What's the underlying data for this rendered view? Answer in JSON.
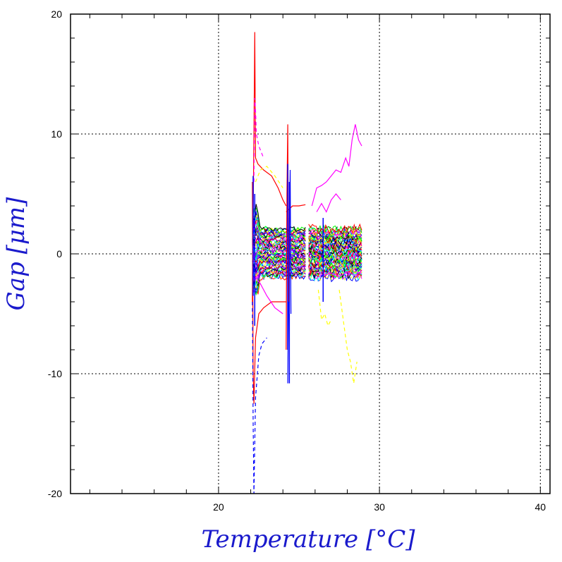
{
  "chart_data": {
    "type": "line",
    "title": "",
    "xlabel": "Temperature [°C]",
    "ylabel": "Gap [μm]",
    "xlim": [
      10.8,
      40.6
    ],
    "ylim": [
      -20,
      20
    ],
    "x_ticks": [
      20,
      30,
      40
    ],
    "y_ticks": [
      -20,
      -10,
      0,
      10,
      20
    ],
    "grid": true,
    "legend": "none",
    "colors": [
      "#ff0000",
      "#0000ff",
      "#ffff00",
      "#ff00ff",
      "#00ffff",
      "#00ff00",
      "#000000",
      "#8000ff",
      "#ff8000"
    ],
    "series": [
      {
        "color": "#ff0000",
        "style": "solid",
        "x": [
          22.1,
          22.2,
          22.25,
          22.3,
          22.45,
          22.8,
          23.3,
          23.7,
          24.0,
          24.2
        ],
        "y": [
          -4,
          10,
          18.5,
          8,
          7.5,
          7,
          6.5,
          5.5,
          4.5,
          4
        ]
      },
      {
        "color": "#ff0000",
        "style": "solid",
        "x": [
          22.1,
          22.15,
          22.2,
          22.3,
          22.5,
          22.8,
          23.3,
          23.8,
          24.2
        ],
        "y": [
          6,
          -10,
          -12.5,
          -7,
          -5,
          -4.5,
          -4,
          -4,
          -4
        ]
      },
      {
        "color": "#ff0000",
        "style": "solid",
        "x": [
          24.2,
          24.6,
          25.0,
          25.4
        ],
        "y": [
          3.5,
          4,
          4,
          4.1
        ]
      },
      {
        "color": "#ff00ff",
        "style": "dashed",
        "x": [
          22.2,
          22.25,
          22.3,
          22.35,
          22.5,
          22.8
        ],
        "y": [
          6,
          13,
          12,
          10,
          9,
          8
        ]
      },
      {
        "color": "#ffff00",
        "style": "dashed",
        "x": [
          22.3,
          22.6,
          23.0,
          23.5,
          24.0
        ],
        "y": [
          6,
          7,
          7.3,
          6.5,
          5.5
        ]
      },
      {
        "color": "#0000ff",
        "style": "dashed",
        "x": [
          22.1,
          22.15,
          22.2,
          22.3,
          22.5,
          22.7,
          23.0
        ],
        "y": [
          -4,
          -14,
          -20,
          -12,
          -8.5,
          -7.5,
          -7
        ]
      },
      {
        "color": "#0000ff",
        "style": "solid",
        "x": [
          24.3,
          24.35,
          24.4,
          24.45,
          24.5
        ],
        "y": [
          -10.8,
          -3,
          1,
          7,
          -5
        ]
      },
      {
        "color": "#ff0000",
        "style": "solid",
        "x": [
          24.2,
          24.25,
          24.3,
          24.35,
          24.4
        ],
        "y": [
          -8,
          5,
          10.8,
          -4,
          3
        ]
      },
      {
        "color": "#ffff00",
        "style": "dashed",
        "x": [
          26.2,
          26.4,
          26.6,
          26.8,
          27.0
        ],
        "y": [
          -3,
          -5.5,
          -5,
          -6,
          -5.5
        ]
      },
      {
        "color": "#ff00ff",
        "style": "solid",
        "x": [
          25.8,
          26.1,
          26.4,
          26.7,
          27.0,
          27.3,
          27.6,
          27.9,
          28.1,
          28.3,
          28.5,
          28.7,
          28.9
        ],
        "y": [
          4,
          5.5,
          5.7,
          6,
          6.5,
          7,
          6.8,
          8,
          7.3,
          9.5,
          10.8,
          9.5,
          9
        ]
      },
      {
        "color": "#ff00ff",
        "style": "solid",
        "x": [
          26.1,
          26.4,
          26.7,
          27.0,
          27.3,
          27.6
        ],
        "y": [
          3.5,
          4.2,
          3.5,
          4.5,
          5,
          4.5
        ]
      },
      {
        "color": "#ffff00",
        "style": "dashed",
        "x": [
          27.5,
          27.8,
          28.0,
          28.2,
          28.4,
          28.6
        ],
        "y": [
          -3,
          -6,
          -8,
          -9,
          -10.8,
          -9
        ]
      },
      {
        "color": "#ff00ff",
        "style": "solid",
        "x": [
          22.2,
          22.6,
          23.0,
          23.5,
          24.0
        ],
        "y": [
          -1.8,
          -2.5,
          -3.5,
          -4.5,
          -5
        ]
      },
      {
        "color": "#ff00ff",
        "style": "solid",
        "x": [
          26.5,
          27.0,
          27.5,
          28.0,
          28.5,
          28.9
        ],
        "y": [
          -1.8,
          -1.6,
          -1.9,
          -1.5,
          -1.8,
          -1.4
        ]
      }
    ],
    "band_regions": [
      {
        "x_range": [
          22.1,
          25.4
        ],
        "y_range": [
          -2.4,
          2.6
        ],
        "colors": [
          "#ff0000",
          "#0000ff",
          "#ffff00",
          "#00ffff",
          "#00ff00",
          "#000000",
          "#ff00ff",
          "#8000ff"
        ]
      },
      {
        "x_range": [
          25.6,
          28.9
        ],
        "y_range": [
          -2.4,
          2.6
        ],
        "colors": [
          "#0000ff",
          "#00ffff",
          "#ffff00",
          "#ff00ff",
          "#000000",
          "#00ff00",
          "#ff0000"
        ]
      }
    ]
  }
}
